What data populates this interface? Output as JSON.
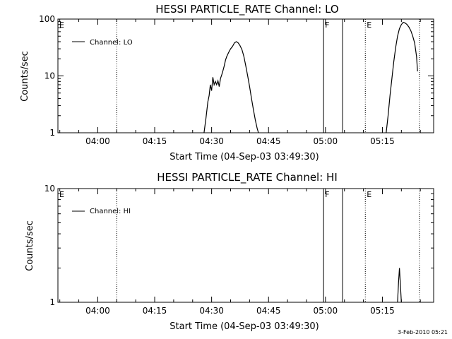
{
  "footer_date": "3-Feb-2010 05:21",
  "chart_data": [
    {
      "type": "line",
      "title": "HESSI PARTICLE_RATE Channel: LO",
      "xlabel": "Start Time (04-Sep-03 03:49:30)",
      "ylabel": "Counts/sec",
      "yscale": "log",
      "ylim": [
        1,
        100
      ],
      "xlim": [
        "03:49:30",
        "05:28:30"
      ],
      "yticks": [
        1,
        10,
        100
      ],
      "ytick_labels": [
        "1",
        "10",
        "100"
      ],
      "xticks": [
        "04:00",
        "04:15",
        "04:30",
        "04:45",
        "05:00",
        "05:15"
      ],
      "legend": {
        "name": "Channel: LO",
        "position": "top-left"
      },
      "markers": [
        {
          "time": "03:49:30",
          "label": "E",
          "style": "dotted",
          "draw_line": false
        },
        {
          "time": "04:05:00",
          "label": "",
          "style": "dotted",
          "draw_line": true
        },
        {
          "time": "04:59:30",
          "label": "F",
          "style": "solid",
          "draw_line": true
        },
        {
          "time": "05:04:30",
          "label": "",
          "style": "solid",
          "draw_line": true
        },
        {
          "time": "05:10:30",
          "label": "E",
          "style": "dotted",
          "draw_line": true
        },
        {
          "time": "05:24:45",
          "label": "",
          "style": "dotted",
          "draw_line": true
        }
      ],
      "segments": [
        {
          "x": [
            "04:28:00",
            "04:28:30",
            "04:29:00",
            "04:29:20",
            "04:29:40",
            "04:30:00",
            "04:30:20",
            "04:30:40",
            "04:31:00",
            "04:31:20",
            "04:31:40",
            "04:32:00",
            "04:32:20",
            "04:32:40",
            "04:33:00",
            "04:33:20",
            "04:33:40",
            "04:34:00",
            "04:34:30",
            "04:35:00",
            "04:35:30",
            "04:36:00",
            "04:36:30",
            "04:37:00",
            "04:37:30",
            "04:38:00",
            "04:38:30",
            "04:39:00",
            "04:39:30",
            "04:40:00",
            "04:40:30",
            "04:41:00",
            "04:41:30",
            "04:42:00",
            "04:42:20"
          ],
          "y": [
            1.0,
            1.8,
            3.5,
            4.5,
            7.0,
            5.5,
            9.5,
            7.0,
            8.0,
            7.0,
            8.2,
            6.5,
            9.0,
            10.5,
            12.5,
            15.0,
            19.0,
            22.0,
            26.0,
            30.0,
            33.0,
            38.0,
            40.0,
            38.0,
            34.0,
            29.0,
            22.0,
            15.0,
            10.0,
            6.5,
            4.0,
            2.6,
            1.7,
            1.2,
            1.0
          ]
        },
        {
          "x": [
            "05:16:00",
            "05:16:30",
            "05:17:00",
            "05:17:30",
            "05:18:00",
            "05:18:30",
            "05:19:00",
            "05:19:30",
            "05:20:00",
            "05:20:30",
            "05:21:00",
            "05:21:30",
            "05:22:00",
            "05:22:30",
            "05:23:00",
            "05:23:30",
            "05:24:00",
            "05:24:15"
          ],
          "y": [
            1.0,
            2.0,
            4.5,
            9.0,
            18.0,
            32.0,
            50.0,
            68.0,
            80.0,
            88.0,
            85.0,
            80.0,
            72.0,
            62.0,
            50.0,
            38.0,
            22.0,
            12.0
          ]
        }
      ]
    },
    {
      "type": "line",
      "title": "HESSI PARTICLE_RATE Channel: HI",
      "xlabel": "Start Time (04-Sep-03 03:49:30)",
      "ylabel": "Counts/sec",
      "yscale": "log",
      "ylim": [
        1,
        10
      ],
      "xlim": [
        "03:49:30",
        "05:28:30"
      ],
      "yticks": [
        1,
        10
      ],
      "ytick_labels": [
        "1",
        "10"
      ],
      "xticks": [
        "04:00",
        "04:15",
        "04:30",
        "04:45",
        "05:00",
        "05:15"
      ],
      "legend": {
        "name": "Channel: HI",
        "position": "top-left"
      },
      "markers": [
        {
          "time": "03:49:30",
          "label": "E",
          "style": "dotted",
          "draw_line": false
        },
        {
          "time": "04:05:00",
          "label": "",
          "style": "dotted",
          "draw_line": true
        },
        {
          "time": "04:59:30",
          "label": "F",
          "style": "solid",
          "draw_line": true
        },
        {
          "time": "05:04:30",
          "label": "",
          "style": "solid",
          "draw_line": true
        },
        {
          "time": "05:10:30",
          "label": "E",
          "style": "dotted",
          "draw_line": true
        },
        {
          "time": "05:24:45",
          "label": "",
          "style": "dotted",
          "draw_line": true
        }
      ],
      "segments": [
        {
          "x": [
            "05:19:00",
            "05:19:15",
            "05:19:30",
            "05:19:45",
            "05:20:00"
          ],
          "y": [
            1.0,
            1.5,
            2.0,
            1.4,
            1.0
          ]
        }
      ]
    }
  ]
}
